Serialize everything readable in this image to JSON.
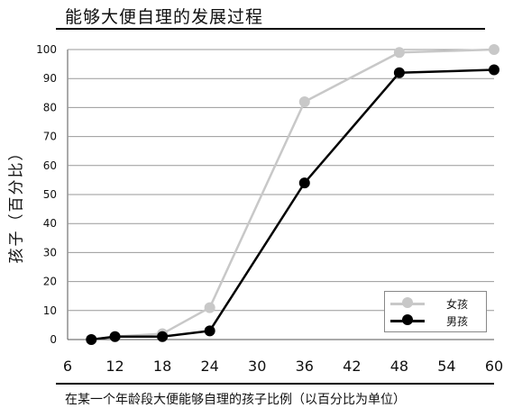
{
  "header": {
    "title": "能够大便自理的发展过程",
    "caption": "在某一个年龄段大便能够自理的孩子比例（以百分比为单位）"
  },
  "colors": {
    "girls": "#c8c8c8",
    "boys": "#000000",
    "grid": "#999999",
    "rule": "#000000"
  },
  "chart_data": {
    "type": "line",
    "title": "能够大便自理的发展过程",
    "xlabel": "在某一个年龄段大便能够自理的孩子比例（以百分比为单位）",
    "ylabel": "孩子（百分比）",
    "xlim": [
      6,
      60
    ],
    "ylim": [
      0,
      100
    ],
    "xticks": [
      6,
      12,
      18,
      24,
      30,
      36,
      42,
      48,
      54,
      60
    ],
    "yticks": [
      0,
      10,
      20,
      30,
      40,
      50,
      60,
      70,
      80,
      90,
      100
    ],
    "grid": "horizontal",
    "legend_position": "bottom-right",
    "series": [
      {
        "name": "女孩",
        "x": [
          9,
          12,
          18,
          24,
          36,
          48,
          60
        ],
        "y": [
          0,
          1,
          2,
          11,
          82,
          99,
          100
        ]
      },
      {
        "name": "男孩",
        "x": [
          9,
          12,
          18,
          24,
          36,
          48,
          60
        ],
        "y": [
          0,
          1,
          1,
          3,
          54,
          92,
          93
        ]
      }
    ]
  }
}
